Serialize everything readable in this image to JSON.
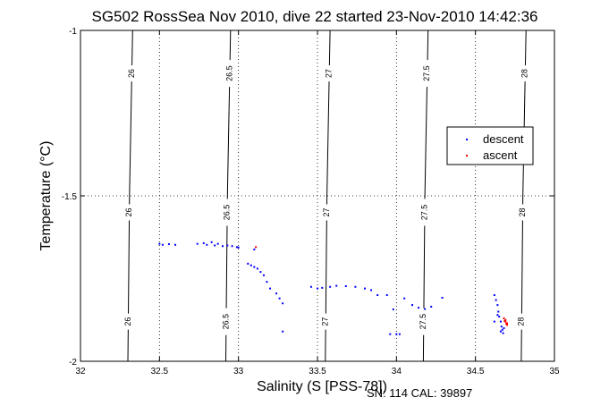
{
  "chart_data": {
    "type": "scatter",
    "title": "SG502 RossSea Nov 2010, dive 22 started 23-Nov-2010 14:42:36",
    "xlabel": "Salinity (S [PSS-78])",
    "ylabel": "Temperature (°C)",
    "footer": "SN: 114  CAL: 39897",
    "xlim": [
      32,
      35
    ],
    "ylim": [
      -2,
      -1
    ],
    "x_ticks": [
      32,
      32.5,
      33,
      33.5,
      34,
      34.5,
      35
    ],
    "x_tick_labels": [
      "32",
      "32.5",
      "33",
      "33.5",
      "34",
      "34.5",
      "35"
    ],
    "y_ticks": [
      -2,
      -1.5,
      -1
    ],
    "y_tick_labels": [
      "-2",
      "-1.5",
      "-1"
    ],
    "grid": "dotted",
    "legend_position": "right",
    "contours": [
      {
        "label": "26",
        "points": [
          [
            32.3,
            -2.0
          ],
          [
            32.31,
            -1.5
          ],
          [
            32.33,
            -1.0
          ]
        ]
      },
      {
        "label": "26.5",
        "points": [
          [
            32.92,
            -2.0
          ],
          [
            32.93,
            -1.5
          ],
          [
            32.95,
            -1.0
          ]
        ]
      },
      {
        "label": "27",
        "points": [
          [
            33.55,
            -2.0
          ],
          [
            33.56,
            -1.5
          ],
          [
            33.58,
            -1.0
          ]
        ]
      },
      {
        "label": "27.5",
        "points": [
          [
            34.17,
            -2.0
          ],
          [
            34.18,
            -1.5
          ],
          [
            34.2,
            -1.0
          ]
        ]
      },
      {
        "label": "28",
        "points": [
          [
            34.79,
            -2.0
          ],
          [
            34.8,
            -1.5
          ],
          [
            34.82,
            -1.0
          ]
        ]
      }
    ],
    "contour_label_y": [
      -1.13,
      -1.55,
      -1.88
    ],
    "series": [
      {
        "name": "descent",
        "color": "#0000ff",
        "points": [
          [
            32.5,
            -1.645
          ],
          [
            32.52,
            -1.648
          ],
          [
            32.56,
            -1.646
          ],
          [
            32.6,
            -1.648
          ],
          [
            32.74,
            -1.645
          ],
          [
            32.78,
            -1.643
          ],
          [
            32.8,
            -1.648
          ],
          [
            32.83,
            -1.64
          ],
          [
            32.85,
            -1.65
          ],
          [
            32.87,
            -1.645
          ],
          [
            32.9,
            -1.652
          ],
          [
            32.93,
            -1.65
          ],
          [
            32.96,
            -1.652
          ],
          [
            32.99,
            -1.655
          ],
          [
            33.0,
            -1.656
          ],
          [
            33.1,
            -1.662
          ],
          [
            33.06,
            -1.705
          ],
          [
            33.08,
            -1.71
          ],
          [
            33.1,
            -1.715
          ],
          [
            33.12,
            -1.72
          ],
          [
            33.14,
            -1.73
          ],
          [
            33.16,
            -1.74
          ],
          [
            33.18,
            -1.76
          ],
          [
            33.2,
            -1.78
          ],
          [
            33.24,
            -1.795
          ],
          [
            33.26,
            -1.81
          ],
          [
            33.28,
            -1.825
          ],
          [
            33.28,
            -1.91
          ],
          [
            33.46,
            -1.775
          ],
          [
            33.5,
            -1.78
          ],
          [
            33.53,
            -1.778
          ],
          [
            33.58,
            -1.775
          ],
          [
            33.62,
            -1.772
          ],
          [
            33.68,
            -1.773
          ],
          [
            33.74,
            -1.775
          ],
          [
            33.8,
            -1.78
          ],
          [
            33.84,
            -1.785
          ],
          [
            33.88,
            -1.8
          ],
          [
            33.94,
            -1.8
          ],
          [
            33.98,
            -1.843
          ],
          [
            34.05,
            -1.81
          ],
          [
            34.1,
            -1.83
          ],
          [
            34.14,
            -1.838
          ],
          [
            34.18,
            -1.842
          ],
          [
            34.22,
            -1.835
          ],
          [
            34.29,
            -1.808
          ],
          [
            33.96,
            -1.918
          ],
          [
            34.0,
            -1.918
          ],
          [
            34.02,
            -1.918
          ],
          [
            34.62,
            -1.8
          ],
          [
            34.63,
            -1.815
          ],
          [
            34.64,
            -1.83
          ],
          [
            34.645,
            -1.85
          ],
          [
            34.65,
            -1.865
          ],
          [
            34.66,
            -1.88
          ],
          [
            34.665,
            -1.895
          ],
          [
            34.67,
            -1.905
          ],
          [
            34.675,
            -1.915
          ],
          [
            34.68,
            -1.9
          ],
          [
            34.66,
            -1.91
          ],
          [
            34.62,
            -1.88
          ],
          [
            34.64,
            -1.86
          ]
        ]
      },
      {
        "name": "ascent",
        "color": "#ff0000",
        "points": [
          [
            33.11,
            -1.655
          ],
          [
            34.68,
            -1.87
          ],
          [
            34.69,
            -1.875
          ],
          [
            34.69,
            -1.88
          ],
          [
            34.7,
            -1.885
          ],
          [
            34.7,
            -1.89
          ],
          [
            34.685,
            -1.878
          ],
          [
            34.695,
            -1.886
          ]
        ]
      }
    ]
  }
}
